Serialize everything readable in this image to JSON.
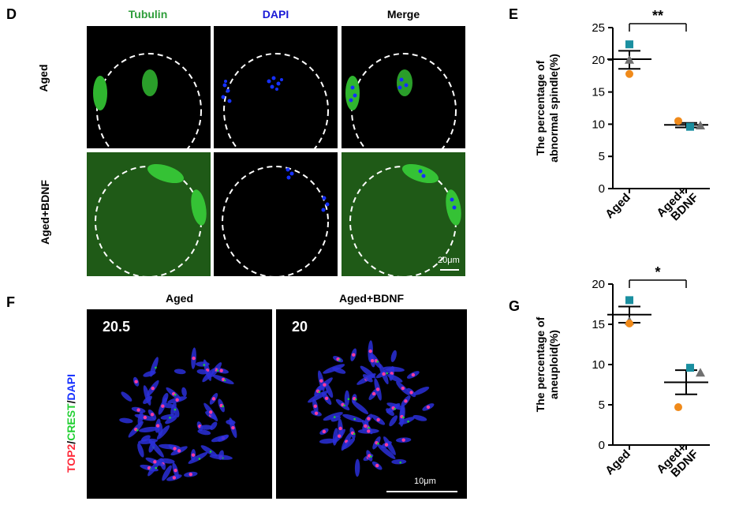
{
  "panels": {
    "D": {
      "letter": "D",
      "columns": [
        "Tubulin",
        "DAPI",
        "Merge"
      ],
      "column_colors": [
        "#2e9e3a",
        "#1a1ad6",
        "#000000"
      ],
      "rows": [
        "Aged",
        "Aged+BDNF"
      ],
      "scalebar": "20μm"
    },
    "E": {
      "letter": "E",
      "ylabel_line1": "The percentage of",
      "ylabel_line2": "abnormal spindle(%)",
      "significance": "**"
    },
    "F": {
      "letter": "F",
      "columns": [
        "Aged",
        "Aged+BDNF"
      ],
      "counts": [
        "20.5",
        "20"
      ],
      "stain_label": {
        "top2": "TOP2",
        "slash1": "/",
        "crest": "CREST",
        "slash2": "/",
        "dapi": "DAPI"
      },
      "scalebar": "10μm"
    },
    "G": {
      "letter": "G",
      "ylabel_line1": "The percentage of",
      "ylabel_line2": "aneuploid(%)",
      "significance": "*"
    }
  },
  "colors": {
    "tubulin": "#2fb52f",
    "dapi": "#1530ff",
    "top2": "#ff2a3a",
    "crest": "#22d033",
    "orange": "#f08a1a",
    "teal": "#1a8fa0",
    "gray": "#707070"
  },
  "chart_data": [
    {
      "type": "scatter",
      "panel": "E",
      "categories": [
        "Aged",
        "Aged+\nBDNF"
      ],
      "category_labels": [
        [
          "Aged"
        ],
        [
          "Aged+",
          "BDNF"
        ]
      ],
      "ylim": [
        0,
        25
      ],
      "yticks": [
        0,
        5,
        10,
        15,
        20,
        25
      ],
      "ylabel": "The percentage of abnormal spindle(%)",
      "points": [
        {
          "category": 0,
          "value": 22.4,
          "shape": "square",
          "color": "teal"
        },
        {
          "category": 0,
          "value": 20.0,
          "shape": "triangle",
          "color": "gray"
        },
        {
          "category": 0,
          "value": 17.8,
          "shape": "circle",
          "color": "orange"
        },
        {
          "category": 1,
          "value": 10.5,
          "shape": "circle",
          "color": "orange"
        },
        {
          "category": 1,
          "value": 9.6,
          "shape": "square",
          "color": "teal"
        },
        {
          "category": 1,
          "value": 9.8,
          "shape": "triangle",
          "color": "gray"
        }
      ],
      "mean": [
        20.1,
        9.9
      ],
      "sem_upper": [
        21.4,
        10.2
      ],
      "sem_lower": [
        18.6,
        9.5
      ],
      "significance": "**"
    },
    {
      "type": "scatter",
      "panel": "G",
      "categories": [
        "Aged",
        "Aged+\nBDNF"
      ],
      "category_labels": [
        [
          "Aged"
        ],
        [
          "Aged+",
          "BDNF"
        ]
      ],
      "ylim": [
        0,
        20
      ],
      "yticks": [
        0,
        5,
        10,
        15,
        20
      ],
      "ylabel": "The percentage of aneuploid(%)",
      "points": [
        {
          "category": 0,
          "value": 18.0,
          "shape": "square",
          "color": "teal"
        },
        {
          "category": 0,
          "value": 15.4,
          "shape": "triangle",
          "color": "gray"
        },
        {
          "category": 0,
          "value": 15.1,
          "shape": "circle",
          "color": "orange"
        },
        {
          "category": 1,
          "value": 9.6,
          "shape": "square",
          "color": "teal"
        },
        {
          "category": 1,
          "value": 9.0,
          "shape": "triangle",
          "color": "gray"
        },
        {
          "category": 1,
          "value": 4.7,
          "shape": "circle",
          "color": "orange"
        }
      ],
      "mean": [
        16.2,
        7.8
      ],
      "sem_upper": [
        17.2,
        9.3
      ],
      "sem_lower": [
        15.2,
        6.3
      ],
      "significance": "*"
    }
  ]
}
